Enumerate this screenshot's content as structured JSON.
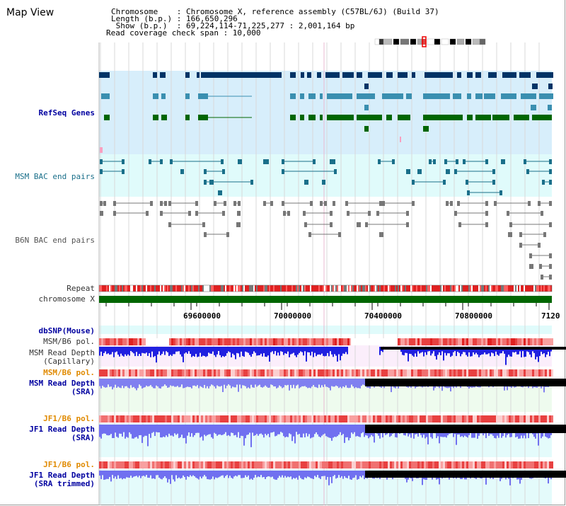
{
  "title": "Map View",
  "header": {
    "line1": "Chromosome    : Chromosome X, reference assembly (C57BL/6J) (Build 37)",
    "line2": "Length (b.p.) : 166,650,296",
    "line3": " Show (b.p.)  : 69,224,114-71,225,277 : 2,001,164 bp",
    "line4": "Read coverage check span : 10,000"
  },
  "tracks": {
    "refseq": "RefSeq Genes",
    "msm_bac": "MSM BAC end pairs",
    "b6n_bac": "B6N BAC end pairs",
    "repeat": "Repeat",
    "chromosome": "chromosome X",
    "dbsnp": "dbSNP(Mouse)",
    "msm_b6_pol_1": "MSM/B6 pol.",
    "msm_depth_cap_1": "MSM Read Depth",
    "msm_depth_cap_2": "(Capillary)",
    "msm_b6_pol_2": "MSM/B6 pol.",
    "msm_depth_sra_1": "MSM Read Depth",
    "msm_depth_sra_2": "(SRA)",
    "jf1_b6_pol_1": "JF1/B6 pol.",
    "jf1_depth_sra_1": "JF1 Read Depth",
    "jf1_depth_sra_2": "(SRA)",
    "jf1_b6_pol_2": "JF1/B6 pol.",
    "jf1_depth_trim_1": "JF1 Read Depth",
    "jf1_depth_trim_2": "(SRA trimmed)"
  },
  "axis": {
    "ticks": [
      "69600000",
      "70000000",
      "70400000",
      "70800000",
      "7120"
    ]
  },
  "colors": {
    "refseq_bg": "#d7eefb",
    "msm_bg": "#e0fbfb",
    "depth_bg_pink": "#fbeefb",
    "depth_bg_green": "#eefbee",
    "depth_bg_cyan": "#e4fbfb",
    "chrom_bar": "#006600",
    "gene_dark": "#003366",
    "gene_mid": "#3a8fb0",
    "gene_green": "#006600"
  }
}
